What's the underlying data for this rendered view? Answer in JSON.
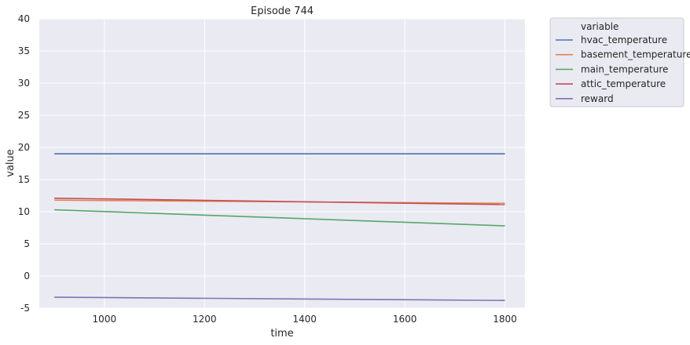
{
  "chart_data": {
    "type": "line",
    "title": "Episode 744",
    "xlabel": "time",
    "ylabel": "value",
    "xlim": [
      870,
      1840
    ],
    "ylim": [
      -5,
      40
    ],
    "xticks": [
      1000,
      1200,
      1400,
      1600,
      1800
    ],
    "yticks": [
      -5,
      0,
      5,
      10,
      15,
      20,
      25,
      30,
      35,
      40
    ],
    "grid": true,
    "legend_title": "variable",
    "legend_position": "outside-top-right",
    "background": "#eaeaf2",
    "series": [
      {
        "name": "hvac_temperature",
        "color": "#4c72b0",
        "x": [
          900,
          1800
        ],
        "y": [
          19.0,
          19.0
        ]
      },
      {
        "name": "basement_temperature",
        "color": "#dd8452",
        "x": [
          900,
          1800
        ],
        "y": [
          11.8,
          11.3
        ]
      },
      {
        "name": "main_temperature",
        "color": "#55a868",
        "x": [
          900,
          1800
        ],
        "y": [
          10.3,
          7.8
        ]
      },
      {
        "name": "attic_temperature",
        "color": "#c44e52",
        "x": [
          900,
          1800
        ],
        "y": [
          12.1,
          11.1
        ]
      },
      {
        "name": "reward",
        "color": "#8172b3",
        "x": [
          900,
          1800
        ],
        "y": [
          -3.3,
          -3.8
        ]
      }
    ]
  }
}
